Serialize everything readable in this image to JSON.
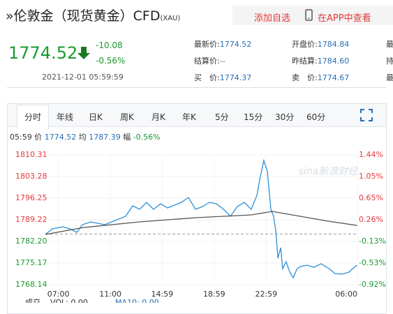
{
  "header": {
    "title": "»伦敦金（现货黄金）CFD",
    "code": "(XAU)",
    "add_watchlist": "添加自选",
    "open_app": "在APP中查看"
  },
  "quote": {
    "price": "1774.52",
    "change": "-10.08",
    "change_pct": "-0.56%",
    "time": "2021-12-01 05:59:59"
  },
  "stats": {
    "rows": [
      [
        {
          "label": "最新价:",
          "value": "1774.52"
        },
        {
          "label": "开盘价:",
          "value": "1784.84"
        },
        {
          "label": "最"
        }
      ],
      [
        {
          "label": "结算价:",
          "value": "--"
        },
        {
          "label": "昨结算:",
          "value": "1784.60"
        },
        {
          "label": "持"
        }
      ],
      [
        {
          "label": "买　价:",
          "value": "1774.37"
        },
        {
          "label": "卖　价:",
          "value": "1774.67"
        },
        {
          "label": "最"
        }
      ]
    ]
  },
  "tabs": [
    "分时",
    "年线",
    "日K",
    "周K",
    "月K",
    "年K",
    "5分",
    "15分",
    "30分",
    "60分"
  ],
  "info": {
    "time": "05:59",
    "price_label": "价",
    "price": "1774.52",
    "avg_label": "均",
    "avg": "1787.39",
    "pct_label": "幅",
    "pct": "-0.56%"
  },
  "chart_data": {
    "type": "line",
    "watermark": "sina新浪财经",
    "baseline": 1784.6,
    "xlim": [
      0,
      1440
    ],
    "xticks": [
      {
        "value": 60,
        "label": "07:00"
      },
      {
        "value": 300,
        "label": "11:00"
      },
      {
        "value": 539,
        "label": "14:59"
      },
      {
        "value": 779,
        "label": "18:59"
      },
      {
        "value": 1019,
        "label": "22:59"
      },
      {
        "value": 1440,
        "label": "06:00"
      }
    ],
    "ylim": [
      1768.14,
      1810.31
    ],
    "yticks": [
      1768.14,
      1775.17,
      {
        "value": 1782.2,
        "label": "1782.20"
      },
      1789.22,
      1796.25,
      1803.28,
      1810.31
    ],
    "y2lim": [
      -0.9223,
      1.4407
    ],
    "y2ticks": [
      {
        "value": -0.9223,
        "label": "-0.92%"
      },
      {
        "value": -0.5284,
        "label": "-0.53%"
      },
      {
        "value": -0.1345,
        "label": "-0.13%"
      },
      {
        "value": 0.2589,
        "label": "0.26%"
      },
      {
        "value": 0.6528,
        "label": "0.65%"
      },
      {
        "value": 1.0467,
        "label": "1.05%"
      },
      {
        "value": 1.4407,
        "label": "1.44%"
      }
    ],
    "series": [
      {
        "color": "#2b8fd8",
        "x": [
          0,
          32,
          81,
          113,
          145,
          171,
          209,
          274,
          322,
          370,
          403,
          435,
          467,
          499,
          532,
          564,
          596,
          628,
          660,
          693,
          725,
          757,
          789,
          822,
          854,
          886,
          918,
          950,
          976,
          989,
          1008,
          1024,
          1041,
          1053,
          1063,
          1073,
          1086,
          1095,
          1111,
          1128,
          1144,
          1160,
          1176,
          1208,
          1240,
          1272,
          1305,
          1337,
          1369,
          1401,
          1418,
          1439
        ],
        "values": [
          1784.46,
          1786.28,
          1786.96,
          1786.28,
          1785.14,
          1787.64,
          1788.54,
          1787.64,
          1789.0,
          1790.36,
          1793.76,
          1792.63,
          1794.89,
          1792.63,
          1794.44,
          1793.08,
          1793.99,
          1794.89,
          1796.48,
          1792.63,
          1793.53,
          1794.89,
          1794.44,
          1792.63,
          1790.36,
          1793.53,
          1794.89,
          1792.63,
          1797.16,
          1802.15,
          1808.5,
          1805.1,
          1792.63,
          1790.36,
          1785.82,
          1776.76,
          1780.16,
          1773.35,
          1775.62,
          1772.22,
          1770.41,
          1773.13,
          1774.03,
          1774.49,
          1773.81,
          1774.94,
          1773.58,
          1771.77,
          1771.54,
          1772.22,
          1773.35,
          1774.52
        ]
      },
      {
        "color": "#555555",
        "x": [
          0,
          177,
          435,
          693,
          950,
          1047,
          1176,
          1305,
          1439
        ],
        "values": [
          1784.46,
          1786.73,
          1788.54,
          1789.9,
          1790.81,
          1791.95,
          1790.36,
          1788.77,
          1787.39
        ]
      }
    ],
    "volume": {
      "label": "成交",
      "vol": "VOL: 0.00",
      "ma": "MA10: 0.00"
    }
  }
}
